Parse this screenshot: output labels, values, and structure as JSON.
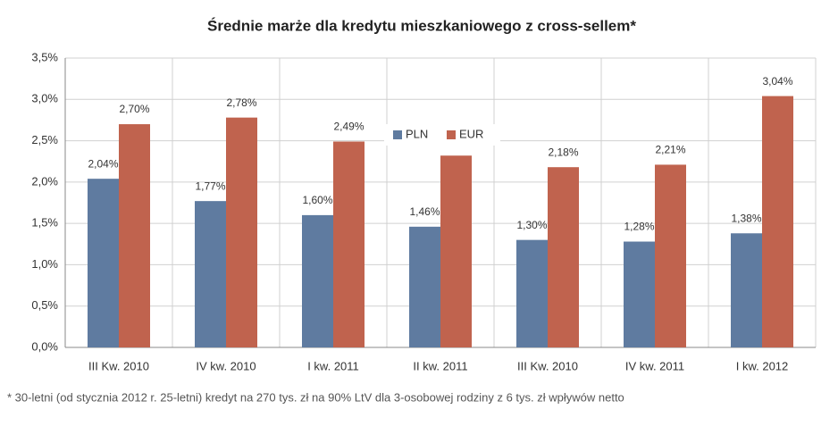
{
  "chart_data": {
    "type": "bar",
    "title": "Średnie marże dla kredytu mieszkaniowego z cross-sellem*",
    "footnote": "* 30-letni (od stycznia 2012 r. 25-letni) kredyt na 270 tys. zł na 90% LtV dla 3-osobowej rodziny z 6 tys. zł wpływów netto",
    "categories": [
      "III Kw. 2010",
      "IV kw. 2010",
      "I kw. 2011",
      "II kw. 2011",
      "III Kw. 2010",
      "IV kw. 2011",
      "I kw. 2012"
    ],
    "series": [
      {
        "name": "PLN",
        "color": "#5f7ba0",
        "values": [
          2.04,
          1.77,
          1.6,
          1.46,
          1.3,
          1.28,
          1.38
        ],
        "value_labels": [
          "2,04%",
          "1,77%",
          "1,60%",
          "1,46%",
          "1,30%",
          "1,28%",
          "1,38%"
        ]
      },
      {
        "name": "EUR",
        "color": "#c0634e",
        "values": [
          2.7,
          2.78,
          2.49,
          2.32,
          2.18,
          2.21,
          3.04
        ],
        "value_labels": [
          "2,70%",
          "2,78%",
          "2,49%",
          null,
          "2,18%",
          "2,21%",
          "3,04%"
        ]
      }
    ],
    "ylim": [
      0,
      3.5
    ],
    "yticks": [
      {
        "value": 0,
        "label": "0,0%"
      },
      {
        "value": 0.5,
        "label": "0,5%"
      },
      {
        "value": 1,
        "label": "1,0%"
      },
      {
        "value": 1.5,
        "label": "1,5%"
      },
      {
        "value": 2,
        "label": "2,0%"
      },
      {
        "value": 2.5,
        "label": "2,5%"
      },
      {
        "value": 3,
        "label": "3,0%"
      },
      {
        "value": 3.5,
        "label": "3,5%"
      }
    ],
    "grid": true,
    "legend": "top"
  }
}
